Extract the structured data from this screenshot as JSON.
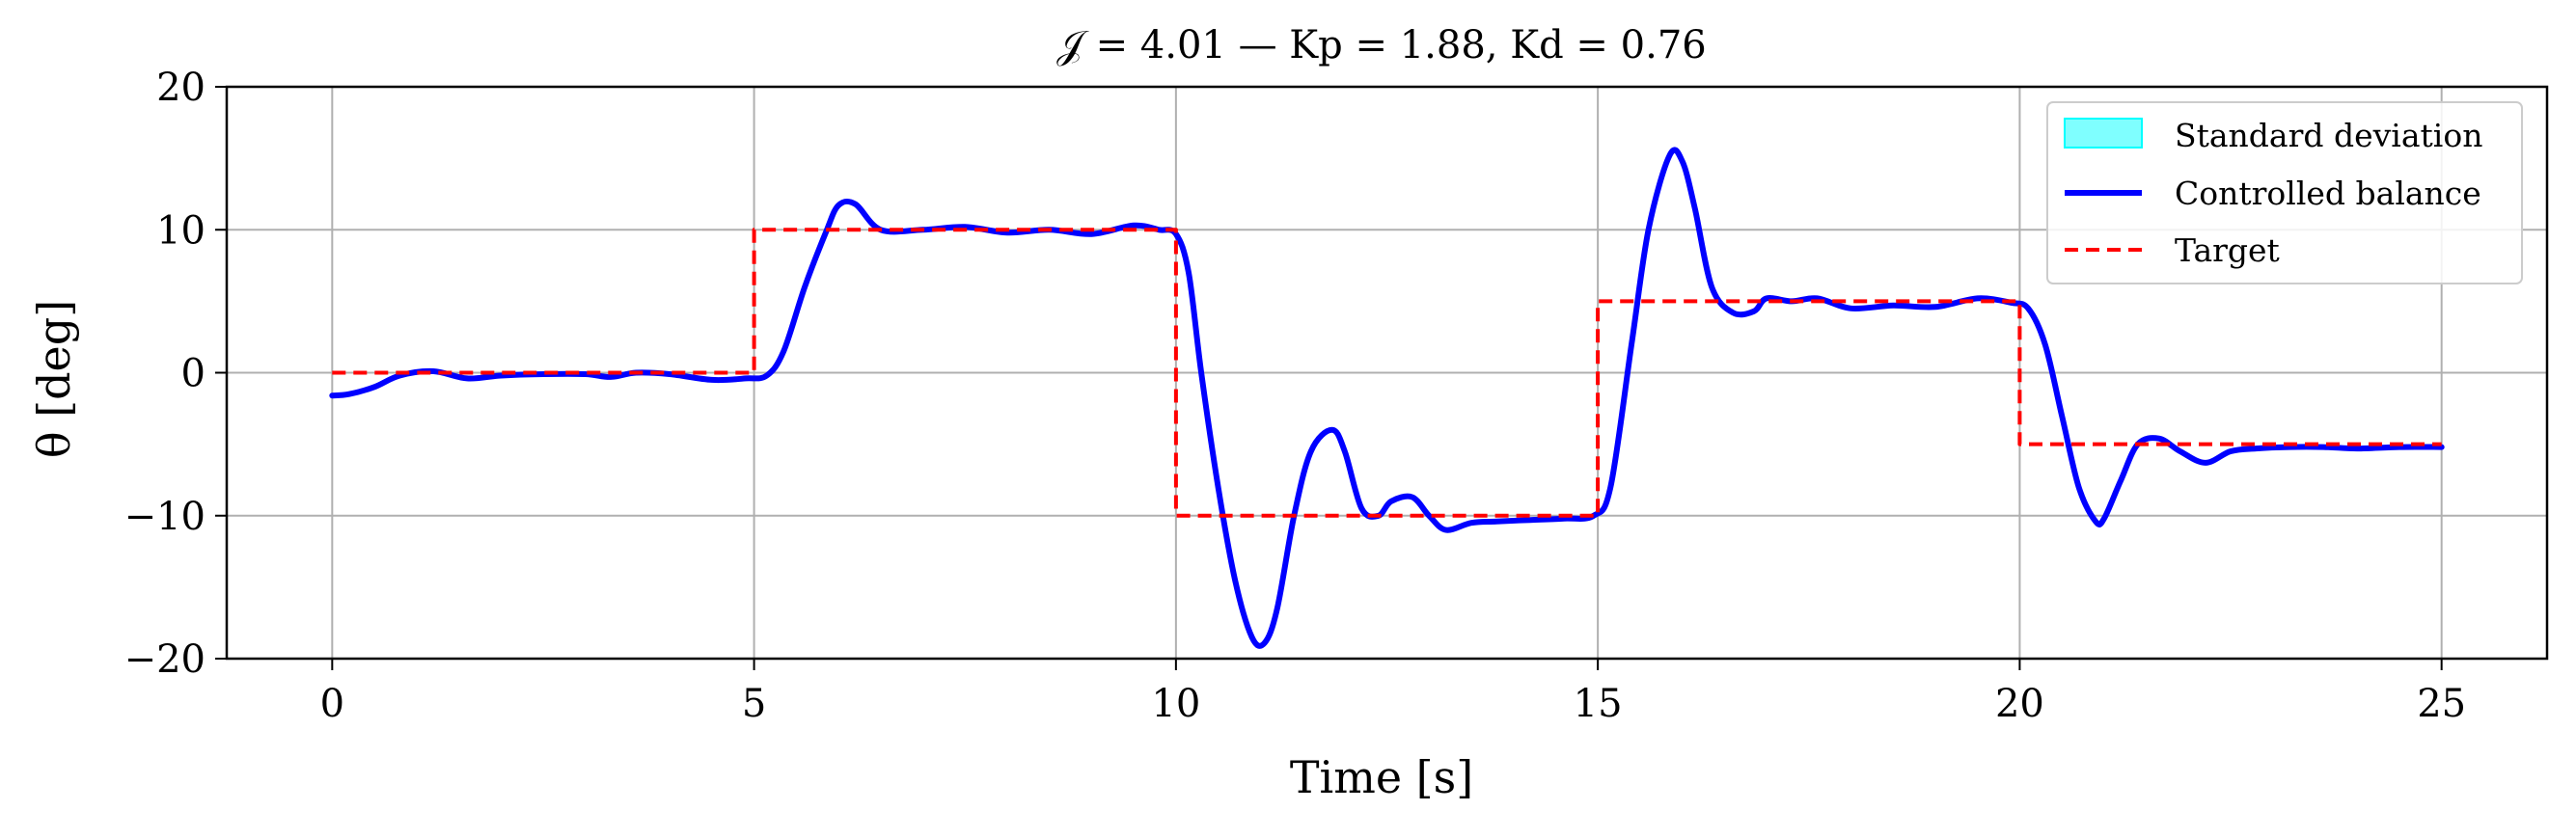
{
  "chart_data": {
    "type": "line",
    "title": "𝒥 = 4.01 — Kp = 1.88, Kd = 0.76",
    "xlabel": "Time [s]",
    "ylabel": "θ [deg]",
    "xlim": [
      -1.25,
      26.25
    ],
    "ylim": [
      -20,
      20
    ],
    "xticks": [
      0,
      5,
      10,
      15,
      20,
      25
    ],
    "xtick_labels": [
      "0",
      "5",
      "10",
      "15",
      "20",
      "25"
    ],
    "yticks": [
      -20,
      -10,
      0,
      10,
      20
    ],
    "ytick_labels": [
      "−20",
      "−10",
      "0",
      "10",
      "20"
    ],
    "grid": true,
    "legend_position": "top-right",
    "series": [
      {
        "name": "Standard deviation",
        "style": "band",
        "color": "#00ffff",
        "x": [],
        "lower": [],
        "upper": []
      },
      {
        "name": "Controlled balance",
        "style": "solid",
        "color": "#0000ff",
        "x": [
          0,
          0.2,
          0.5,
          0.8,
          1.2,
          1.6,
          2.0,
          2.5,
          3.0,
          3.3,
          3.6,
          4.0,
          4.5,
          4.9,
          5.15,
          5.35,
          5.6,
          5.85,
          6.0,
          6.2,
          6.5,
          7.0,
          7.5,
          8.0,
          8.5,
          9.0,
          9.5,
          9.8,
          10.0,
          10.15,
          10.3,
          10.5,
          10.7,
          10.9,
          11.05,
          11.2,
          11.4,
          11.6,
          11.85,
          12.0,
          12.2,
          12.4,
          12.55,
          12.8,
          13.0,
          13.2,
          13.5,
          13.8,
          14.2,
          14.6,
          14.95,
          15.15,
          15.4,
          15.6,
          15.85,
          16.0,
          16.15,
          16.35,
          16.6,
          16.85,
          17.0,
          17.3,
          17.6,
          18.0,
          18.5,
          19.0,
          19.5,
          19.9,
          20.1,
          20.3,
          20.5,
          20.7,
          20.9,
          21.0,
          21.2,
          21.4,
          21.65,
          21.9,
          22.2,
          22.5,
          22.8,
          23.2,
          23.6,
          24.0,
          24.5,
          25.0
        ],
        "y": [
          -1.6,
          -1.5,
          -1.0,
          -0.2,
          0.1,
          -0.4,
          -0.2,
          -0.1,
          -0.1,
          -0.3,
          0.0,
          -0.1,
          -0.5,
          -0.4,
          -0.2,
          1.5,
          6.0,
          9.8,
          11.7,
          11.8,
          10.0,
          10.0,
          10.2,
          9.8,
          10.0,
          9.7,
          10.3,
          10.0,
          9.7,
          7.0,
          0.0,
          -8.0,
          -14.5,
          -18.5,
          -18.9,
          -16.5,
          -10.0,
          -5.5,
          -4.0,
          -5.5,
          -9.5,
          -10.0,
          -9.0,
          -8.7,
          -10.0,
          -11.0,
          -10.5,
          -10.4,
          -10.3,
          -10.2,
          -10.0,
          -8.0,
          2.0,
          10.0,
          15.2,
          14.8,
          11.5,
          6.0,
          4.2,
          4.3,
          5.2,
          5.0,
          5.2,
          4.5,
          4.7,
          4.6,
          5.2,
          4.9,
          4.5,
          2.0,
          -3.0,
          -8.0,
          -10.4,
          -10.2,
          -7.5,
          -5.0,
          -4.6,
          -5.5,
          -6.3,
          -5.5,
          -5.3,
          -5.2,
          -5.2,
          -5.3,
          -5.2,
          -5.2
        ]
      },
      {
        "name": "Target",
        "style": "dashed",
        "color": "#ff0000",
        "x": [
          0,
          5,
          5,
          10,
          10,
          15,
          15,
          20,
          20,
          25
        ],
        "y": [
          0,
          0,
          10,
          10,
          -10,
          -10,
          5,
          5,
          -5,
          -5
        ]
      }
    ]
  }
}
